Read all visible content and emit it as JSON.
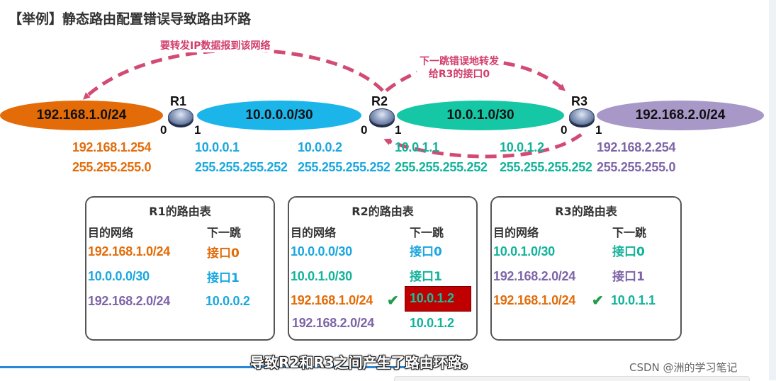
{
  "title": "【举例】静态路由配置错误导致路由环路",
  "networks": {
    "net1": "192.168.1.0/24",
    "net2": "10.0.0.0/30",
    "net3": "10.0.1.0/30",
    "net4": "192.168.2.0/24"
  },
  "routers": {
    "r1": "R1",
    "r2": "R2",
    "r3": "R3"
  },
  "ports": {
    "r1_p0": "0",
    "r1_p1": "1",
    "r2_p0": "0",
    "r2_p1": "1",
    "r3_p0": "0",
    "r3_p1": "1"
  },
  "interfaces": {
    "r1_if0": {
      "ip": "192.168.1.254",
      "mask": "255.255.255.0"
    },
    "r1_if1": {
      "ip": "10.0.0.1",
      "mask": "255.255.255.252"
    },
    "r2_if0": {
      "ip": "10.0.0.2",
      "mask": "255.255.255.252"
    },
    "r2_if1": {
      "ip": "10.0.1.1",
      "mask": "255.255.255.252"
    },
    "r3_if0": {
      "ip": "10.0.1.2",
      "mask": "255.255.255.252"
    },
    "r3_if1": {
      "ip": "192.168.2.254",
      "mask": "255.255.255.0"
    }
  },
  "annotations": {
    "forward": "要转发IP数据报到该网络",
    "misforward_line1": "下一跳错误地转发",
    "misforward_line2": "给R3的接口0"
  },
  "tables": {
    "r1": {
      "title": "R1的路由表",
      "col_dest": "目的网络",
      "col_next": "下一跳",
      "rows": [
        {
          "dest": "192.168.1.0/24",
          "next": "接口0"
        },
        {
          "dest": "10.0.0.0/30",
          "next": "接口1"
        },
        {
          "dest": "192.168.2.0/24",
          "next": "10.0.0.2"
        }
      ]
    },
    "r2": {
      "title": "R2的路由表",
      "col_dest": "目的网络",
      "col_next": "下一跳",
      "rows": [
        {
          "dest": "10.0.0.0/30",
          "next": "接口0"
        },
        {
          "dest": "10.0.1.0/30",
          "next": "接口1"
        },
        {
          "dest": "192.168.1.0/24",
          "next": "10.0.1.2"
        },
        {
          "dest": "192.168.2.0/24",
          "next": "10.0.1.2"
        }
      ]
    },
    "r3": {
      "title": "R3的路由表",
      "col_dest": "目的网络",
      "col_next": "下一跳",
      "rows": [
        {
          "dest": "10.0.1.0/30",
          "next": "接口0"
        },
        {
          "dest": "192.168.2.0/24",
          "next": "接口1"
        },
        {
          "dest": "192.168.1.0/24",
          "next": "10.0.1.1"
        }
      ]
    }
  },
  "caption": "导致R2和R3之间产生了路由环路。",
  "watermark": "CSDN @洲的学习笔记",
  "colors": {
    "orange": "#e36c09",
    "blue": "#1aa7df",
    "teal": "#12b39a",
    "purple": "#7e65a8",
    "arrow": "#d24b74",
    "highlight": "#c00000",
    "check": "#1f9d4a"
  },
  "icons": [
    "router-icon",
    "check-icon"
  ]
}
